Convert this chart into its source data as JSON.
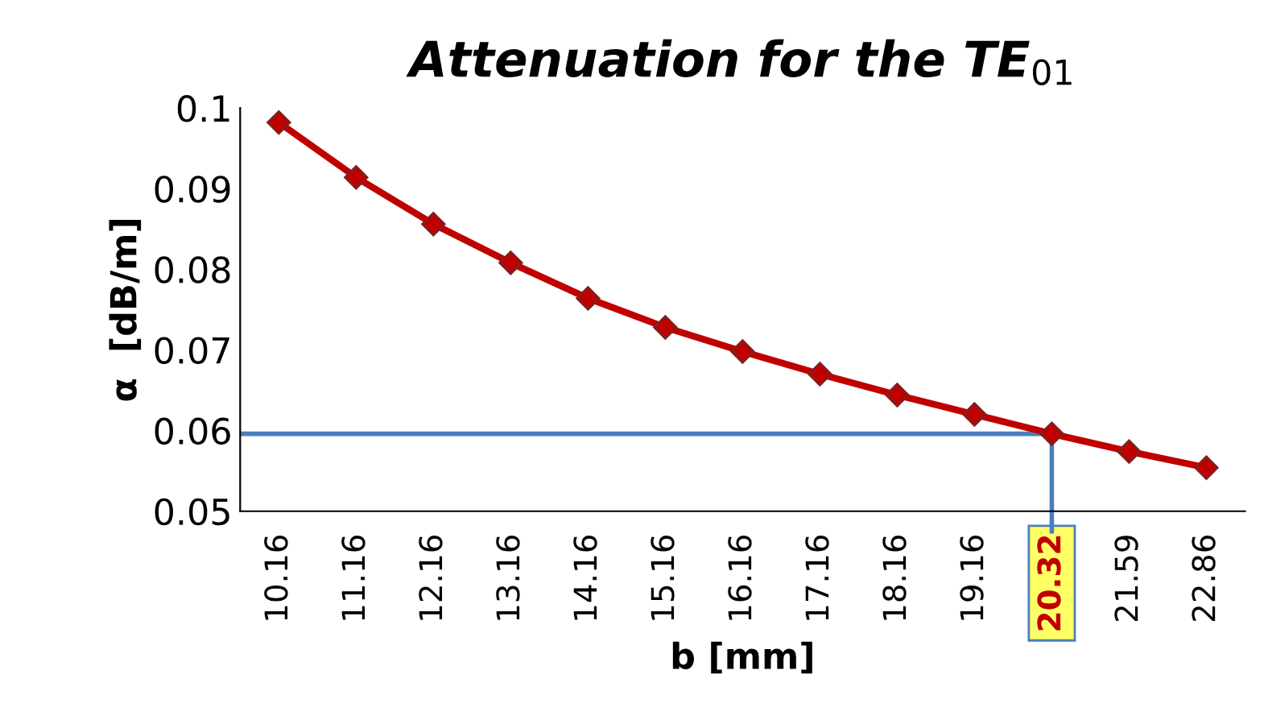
{
  "chart_data": {
    "type": "line",
    "title": "Attenuation for the TE$_{01}$",
    "xlabel": "b [mm]",
    "ylabel": "α  [dB/m]",
    "categories": [
      "10.16",
      "11.16",
      "12.16",
      "13.16",
      "14.16",
      "15.16",
      "16.16",
      "17.16",
      "18.16",
      "19.16",
      "20.32",
      "21.59",
      "22.86"
    ],
    "series": [
      {
        "color": "#c00000",
        "values": [
          0.0982,
          0.0914,
          0.0856,
          0.0808,
          0.0764,
          0.0728,
          0.0698,
          0.067,
          0.0644,
          0.062,
          0.0596,
          0.0574,
          0.0554
        ]
      }
    ],
    "ylim": [
      0.05,
      0.1
    ],
    "yticks": [
      0.05,
      0.06,
      0.07,
      0.08,
      0.09,
      0.1
    ],
    "ref_lines": [
      {
        "axis": "y",
        "value": 0.0596,
        "color": "#4a7ebb"
      },
      {
        "axis": "x",
        "value": "20.32",
        "color": "#4a7ebb"
      }
    ],
    "marker": "diamond",
    "line_style": "solid"
  }
}
